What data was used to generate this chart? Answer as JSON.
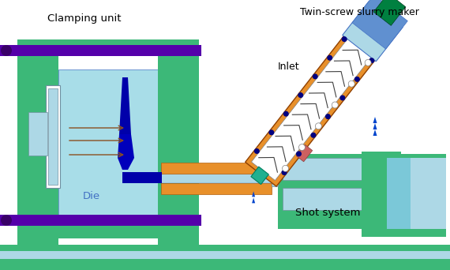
{
  "bg_color": "#ffffff",
  "colors": {
    "green": "#3cb878",
    "light_blue": "#87ceeb",
    "lighter_blue": "#add8e6",
    "cyan_light": "#a8dde8",
    "cyan_mid": "#7bc8d8",
    "orange": "#e8902a",
    "purple": "#5500aa",
    "dark_purple": "#3a0068",
    "dark_blue": "#0000aa",
    "navy": "#000080",
    "steel_blue": "#4472c4",
    "mid_blue": "#6090d0",
    "teal": "#20b090",
    "brown": "#8b5020",
    "dark_green": "#008040",
    "blue_gray": "#7090a0"
  },
  "labels": {
    "clamping_unit": "Clamping unit",
    "twin_screw": "Twin-screw slurry maker",
    "inlet": "Inlet",
    "die": "Die",
    "shot_system": "Shot system"
  },
  "figsize": [
    5.7,
    3.42
  ],
  "dpi": 100,
  "xlim": [
    0,
    570
  ],
  "ylim": [
    0,
    342
  ]
}
